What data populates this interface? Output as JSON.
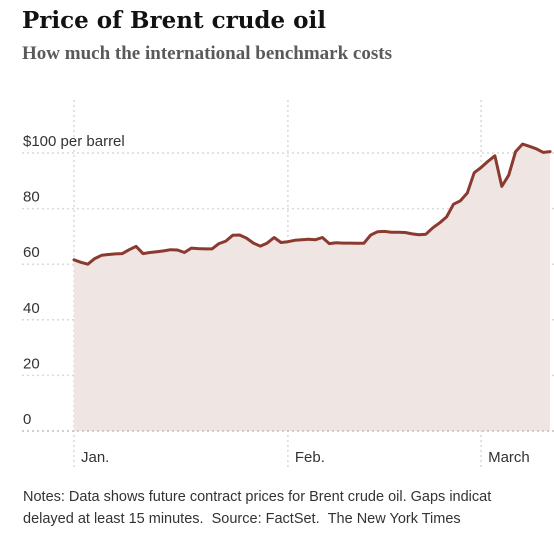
{
  "title": "Price of Brent crude oil",
  "subtitle": "How much the international benchmark costs",
  "notes": {
    "line1": "Notes: Data shows future contract prices for Brent crude oil. Gaps indicat",
    "line2_part1": "delayed at least 15 minutes.",
    "line2_part2": "Source: FactSet.",
    "line2_part3": "The New York Times"
  },
  "colors": {
    "line": "#8b3a2f",
    "area": "#efe5e3",
    "grid": "#d9d9d9"
  },
  "chart_data": {
    "type": "area",
    "title": "Price of Brent crude oil",
    "subtitle": "How much the international benchmark costs",
    "ylim": [
      0,
      100
    ],
    "y_ticks": [
      {
        "value": 0,
        "label": "0"
      },
      {
        "value": 20,
        "label": "20"
      },
      {
        "value": 40,
        "label": "40"
      },
      {
        "value": 60,
        "label": "60"
      },
      {
        "value": 80,
        "label": "80"
      },
      {
        "value": 100,
        "label": "$100 per barrel"
      }
    ],
    "x_ticks": [
      {
        "day": 0,
        "label": "Jan."
      },
      {
        "day": 31,
        "label": "Feb."
      },
      {
        "day": 59,
        "label": "March"
      }
    ],
    "grid": true,
    "series": [
      {
        "x": [
          0,
          1,
          2,
          3,
          4,
          5,
          6,
          7,
          8,
          9,
          10,
          11,
          12,
          13,
          14,
          15,
          16,
          17,
          18,
          19,
          20,
          21,
          22,
          23,
          24,
          25,
          26,
          27,
          28,
          29,
          30,
          31,
          32,
          33,
          34,
          35,
          36,
          37,
          38,
          39,
          40,
          41,
          42,
          43,
          44,
          45,
          46,
          47,
          48,
          49,
          50,
          51,
          52,
          53,
          54,
          55,
          56,
          57,
          58,
          59,
          60,
          61,
          62,
          63,
          64,
          65,
          66,
          67,
          68,
          69
        ],
        "values": [
          61.6,
          60.7,
          60.0,
          62.0,
          63.2,
          63.5,
          63.7,
          63.8,
          65.2,
          66.4,
          63.8,
          64.2,
          64.5,
          64.8,
          65.2,
          65.1,
          64.2,
          65.8,
          65.6,
          65.5,
          65.5,
          67.4,
          68.3,
          70.4,
          70.5,
          69.4,
          67.6,
          66.5,
          67.6,
          69.6,
          67.8,
          68.1,
          68.6,
          68.8,
          69.0,
          68.8,
          69.6,
          67.4,
          67.7,
          67.6,
          67.6,
          67.5,
          67.5,
          70.5,
          71.7,
          71.8,
          71.5,
          71.5,
          71.4,
          70.9,
          70.6,
          70.8,
          73.1,
          74.9,
          77.0,
          81.6,
          82.8,
          85.6,
          92.9,
          94.8,
          97.0,
          99.0,
          88.0,
          92.0,
          100.5,
          103.2,
          102.4,
          101.5,
          100.2,
          100.5
        ]
      }
    ]
  }
}
